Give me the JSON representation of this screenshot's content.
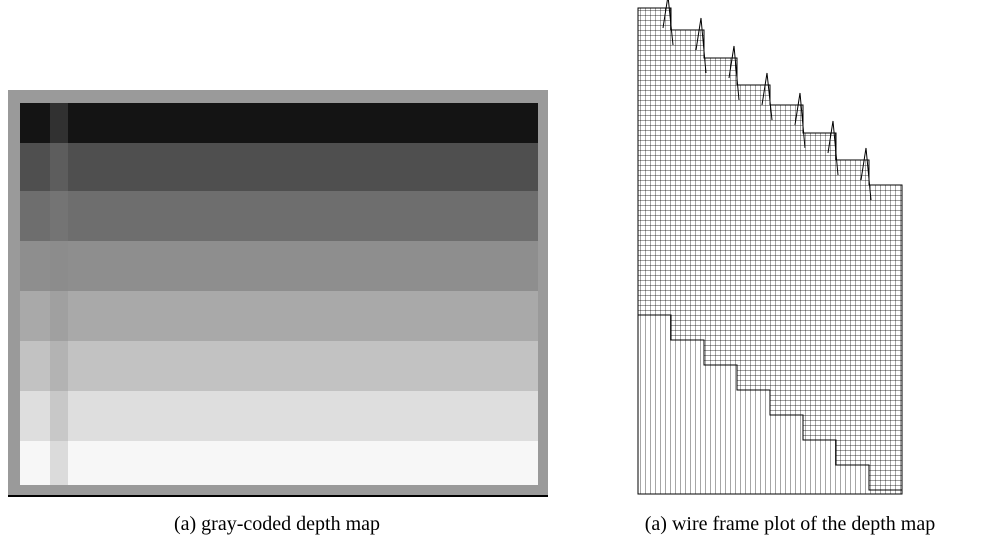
{
  "figure": {
    "panels": [
      {
        "caption": "(a) gray-coded depth map"
      },
      {
        "caption": "(a) wire frame plot of the depth map"
      }
    ]
  }
}
